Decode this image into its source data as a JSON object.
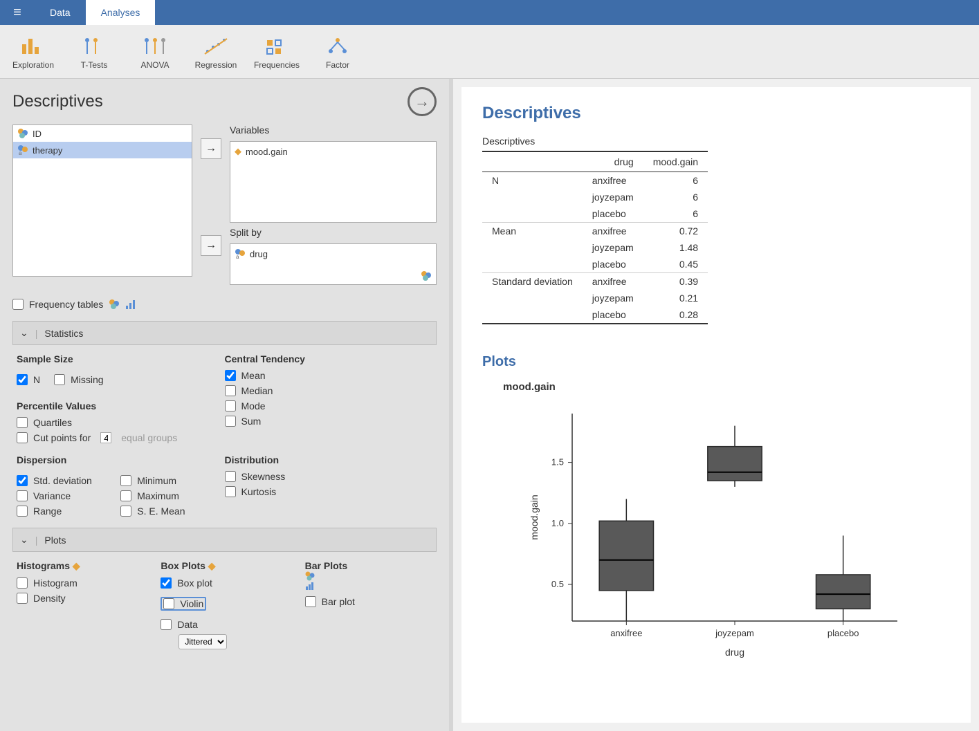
{
  "tabs": {
    "data": "Data",
    "analyses": "Analyses",
    "active": "analyses"
  },
  "ribbon": [
    {
      "id": "exploration",
      "label": "Exploration"
    },
    {
      "id": "ttests",
      "label": "T-Tests"
    },
    {
      "id": "anova",
      "label": "ANOVA"
    },
    {
      "id": "regression",
      "label": "Regression"
    },
    {
      "id": "frequencies",
      "label": "Frequencies"
    },
    {
      "id": "factor",
      "label": "Factor"
    }
  ],
  "panel": {
    "title": "Descriptives",
    "available": [
      {
        "name": "ID",
        "icon": "nominal",
        "selected": false
      },
      {
        "name": "therapy",
        "icon": "nominal-text",
        "selected": true
      }
    ],
    "variables_label": "Variables",
    "variables": [
      {
        "name": "mood.gain",
        "icon": "continuous"
      }
    ],
    "splitby_label": "Split by",
    "splitby": [
      {
        "name": "drug",
        "icon": "nominal-text"
      }
    ],
    "freq_tables_label": "Frequency tables",
    "statistics_label": "Statistics",
    "plots_label": "Plots",
    "sample_size": {
      "title": "Sample Size",
      "n": "N",
      "n_checked": true,
      "missing": "Missing",
      "missing_checked": false
    },
    "percentile": {
      "title": "Percentile Values",
      "quartiles": "Quartiles",
      "quartiles_checked": false,
      "cutpoints_pre": "Cut points for",
      "cutpoints_value": "4",
      "cutpoints_post": "equal groups",
      "cutpoints_checked": false
    },
    "central": {
      "title": "Central Tendency",
      "mean": "Mean",
      "mean_checked": true,
      "median": "Median",
      "median_checked": false,
      "mode": "Mode",
      "mode_checked": false,
      "sum": "Sum",
      "sum_checked": false
    },
    "dispersion": {
      "title": "Dispersion",
      "std": "Std. deviation",
      "std_checked": true,
      "variance": "Variance",
      "variance_checked": false,
      "range": "Range",
      "range_checked": false,
      "min": "Minimum",
      "min_checked": false,
      "max": "Maximum",
      "max_checked": false,
      "se": "S. E. Mean",
      "se_checked": false
    },
    "distribution": {
      "title": "Distribution",
      "skewness": "Skewness",
      "skewness_checked": false,
      "kurtosis": "Kurtosis",
      "kurtosis_checked": false
    },
    "plot_groups": {
      "hist": {
        "title": "Histograms",
        "hist": "Histogram",
        "hist_checked": false,
        "density": "Density",
        "density_checked": false
      },
      "box": {
        "title": "Box Plots",
        "box": "Box plot",
        "box_checked": true,
        "violin": "Violin",
        "violin_checked": false,
        "data": "Data",
        "data_checked": false,
        "jitter_label": "Jittered"
      },
      "bar": {
        "title": "Bar Plots",
        "bar": "Bar plot",
        "bar_checked": false
      }
    }
  },
  "results": {
    "title": "Descriptives",
    "table_title": "Descriptives",
    "columns": [
      "",
      "drug",
      "mood.gain"
    ],
    "rows": [
      {
        "stat": "N",
        "levels": [
          [
            "anxifree",
            "6"
          ],
          [
            "joyzepam",
            "6"
          ],
          [
            "placebo",
            "6"
          ]
        ]
      },
      {
        "stat": "Mean",
        "levels": [
          [
            "anxifree",
            "0.72"
          ],
          [
            "joyzepam",
            "1.48"
          ],
          [
            "placebo",
            "0.45"
          ]
        ]
      },
      {
        "stat": "Standard deviation",
        "levels": [
          [
            "anxifree",
            "0.39"
          ],
          [
            "joyzepam",
            "0.21"
          ],
          [
            "placebo",
            "0.28"
          ]
        ]
      }
    ],
    "plots_title": "Plots",
    "plot_var": "mood.gain",
    "boxplot": {
      "ylabel": "mood.gain",
      "xlabel": "drug",
      "ylim": [
        0.2,
        1.9
      ],
      "yticks": [
        {
          "v": 0.5,
          "l": "0.5"
        },
        {
          "v": 1.0,
          "l": "1.0"
        },
        {
          "v": 1.5,
          "l": "1.5"
        }
      ],
      "categories": [
        "anxifree",
        "joyzepam",
        "placebo"
      ],
      "boxes": [
        {
          "min": 0.2,
          "q1": 0.45,
          "median": 0.7,
          "q3": 1.02,
          "max": 1.2
        },
        {
          "min": 1.3,
          "q1": 1.35,
          "median": 1.42,
          "q3": 1.63,
          "max": 1.8
        },
        {
          "min": 0.2,
          "q1": 0.3,
          "median": 0.42,
          "q3": 0.58,
          "max": 0.9
        }
      ],
      "box_fill": "#595959",
      "box_stroke": "#2b2b2b",
      "bg": "#ffffff",
      "axis_color": "#333333",
      "text_color": "#333333"
    }
  },
  "colors": {
    "brand": "#3e6da9",
    "accent": "#e6a43c"
  }
}
